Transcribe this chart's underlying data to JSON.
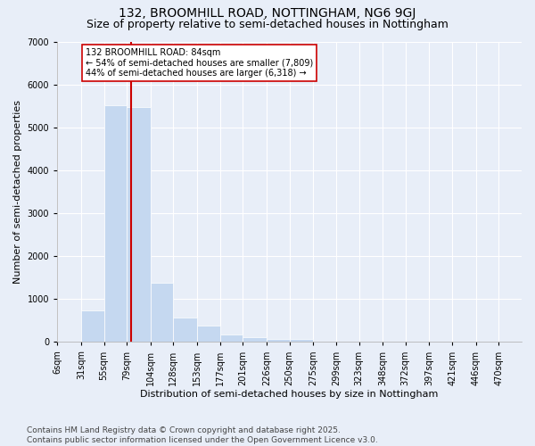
{
  "title": "132, BROOMHILL ROAD, NOTTINGHAM, NG6 9GJ",
  "subtitle": "Size of property relative to semi-detached houses in Nottingham",
  "xlabel": "Distribution of semi-detached houses by size in Nottingham",
  "ylabel": "Number of semi-detached properties",
  "bar_color": "#c5d8f0",
  "bar_edge_color": "#c5d8f0",
  "background_color": "#e8eef8",
  "grid_color": "#ffffff",
  "vline_color": "#cc0000",
  "vline_x": 84,
  "annotation_text": "132 BROOMHILL ROAD: 84sqm\n← 54% of semi-detached houses are smaller (7,809)\n44% of semi-detached houses are larger (6,318) →",
  "footer": "Contains HM Land Registry data © Crown copyright and database right 2025.\nContains public sector information licensed under the Open Government Licence v3.0.",
  "bins": [
    6,
    31,
    55,
    79,
    104,
    128,
    153,
    177,
    201,
    226,
    250,
    275,
    299,
    323,
    348,
    372,
    397,
    421,
    446,
    470,
    494
  ],
  "counts": [
    8,
    740,
    5520,
    5470,
    1380,
    580,
    390,
    170,
    110,
    75,
    70,
    0,
    0,
    0,
    0,
    0,
    0,
    0,
    0,
    0
  ],
  "ylim": [
    0,
    7000
  ],
  "yticks": [
    0,
    1000,
    2000,
    3000,
    4000,
    5000,
    6000,
    7000
  ],
  "title_fontsize": 10,
  "subtitle_fontsize": 9,
  "footer_fontsize": 6.5,
  "axis_label_fontsize": 8,
  "tick_fontsize": 7
}
